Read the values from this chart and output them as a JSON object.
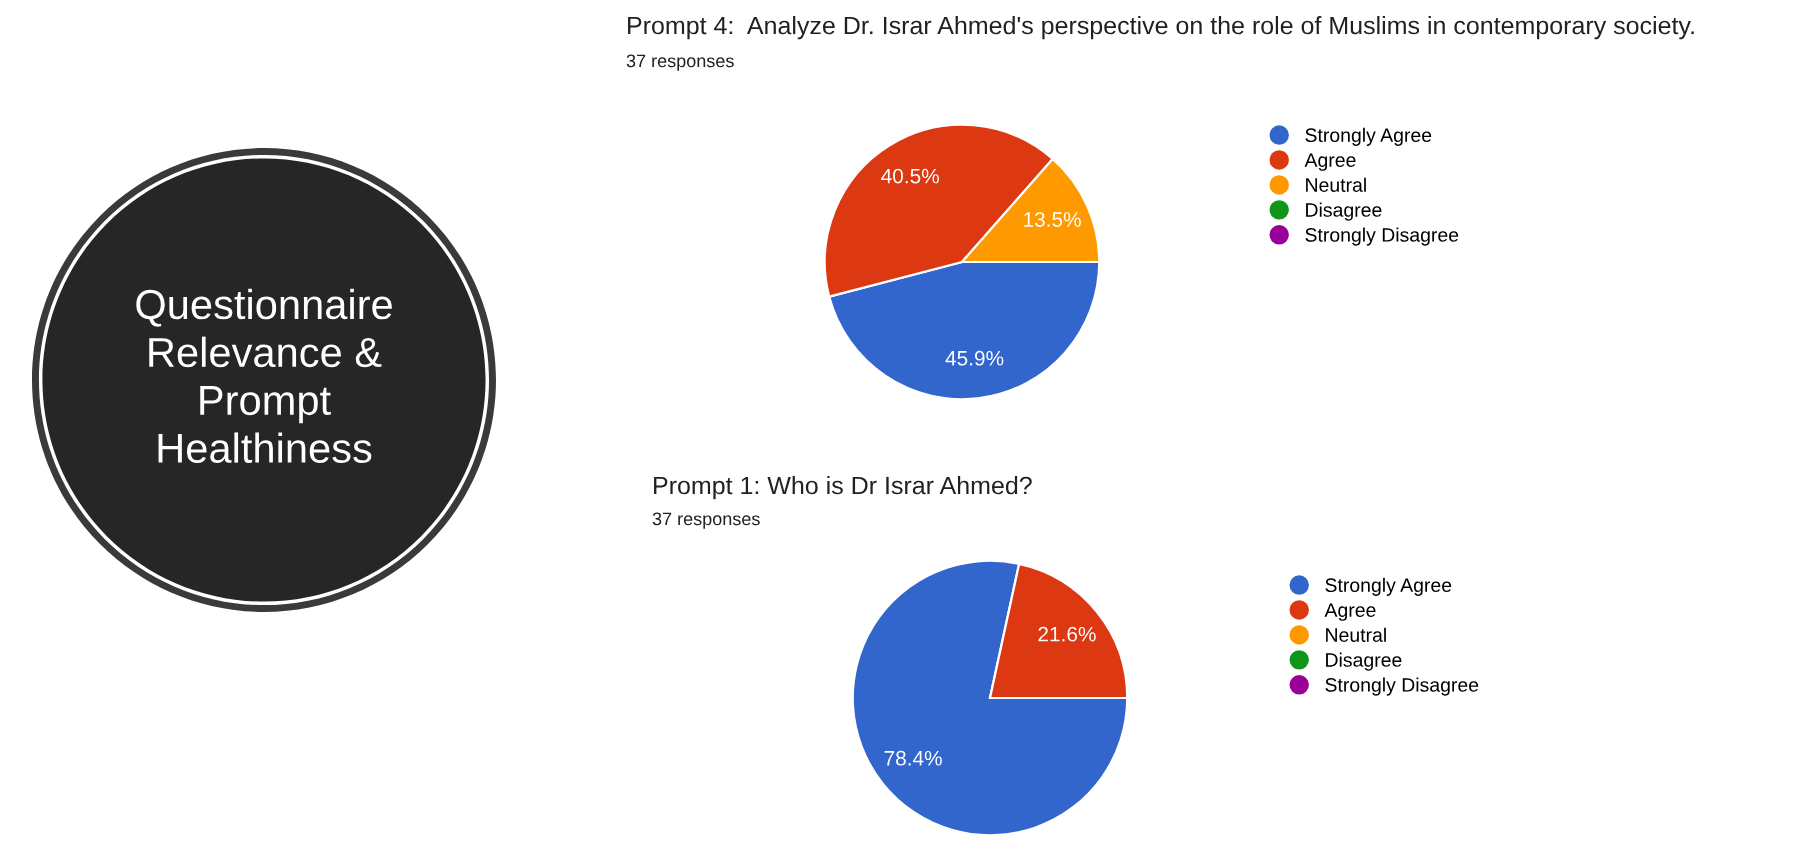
{
  "chart_data": [
    {
      "type": "other",
      "title": "Questionnaire\nRelevance &\nPrompt\nHealthiness"
    },
    {
      "type": "pie",
      "title": "Prompt 4:  Analyze Dr. Israr Ahmed's perspective on the role of Muslims in contemporary society.",
      "subtitle": "37 responses",
      "categories": [
        "Strongly Agree",
        "Agree",
        "Neutral",
        "Disagree",
        "Strongly Disagree"
      ],
      "values": [
        45.9,
        40.5,
        13.5,
        0,
        0
      ],
      "colors": [
        "#3366cc",
        "#dc3912",
        "#ff9900",
        "#109618",
        "#990099"
      ],
      "value_labels": [
        "45.9%",
        "40.5%",
        "13.5%",
        null,
        null
      ],
      "legend": "right"
    },
    {
      "type": "pie",
      "title": "Prompt 1: Who is Dr Israr Ahmed?",
      "subtitle": "37 responses",
      "categories": [
        "Strongly Agree",
        "Agree",
        "Neutral",
        "Disagree",
        "Strongly Disagree"
      ],
      "values": [
        78.4,
        21.6,
        0,
        0,
        0
      ],
      "colors": [
        "#3366cc",
        "#dc3912",
        "#ff9900",
        "#109618",
        "#990099"
      ],
      "value_labels": [
        "78.4%",
        "21.6%",
        null,
        null,
        null
      ],
      "legend": "right"
    }
  ]
}
